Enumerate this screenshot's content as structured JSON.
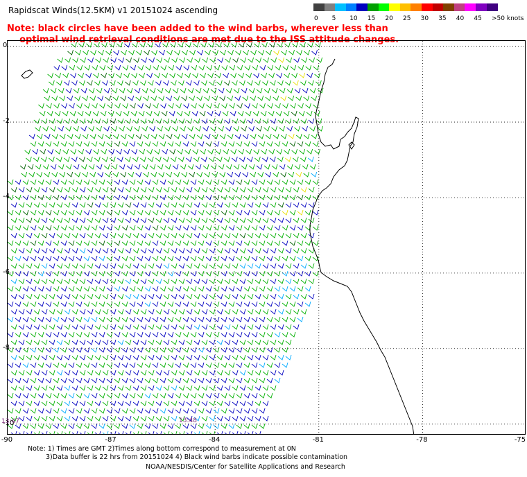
{
  "title": "Rapidscat Winds(12.5KM) v1 20151024 ascending",
  "note": {
    "line1": "Note: black circles have been added to the wind barbs, wherever less than",
    "line2": "optimal wind retrieval conditions are met due to the ISS attitude changes."
  },
  "colorbar": {
    "colors": [
      "#404040",
      "#808080",
      "#00c0ff",
      "#0080ff",
      "#0000c0",
      "#00a000",
      "#00ff00",
      "#ffff00",
      "#ffc000",
      "#ff8000",
      "#ff0000",
      "#c00000",
      "#804000",
      "#c04080",
      "#ff00ff",
      "#8000c0",
      "#400080"
    ],
    "labels": [
      "0",
      "5",
      "10",
      "15",
      "20",
      "25",
      "30",
      "35",
      "40",
      "45",
      ">50 knots"
    ]
  },
  "axes": {
    "x_ticks": [
      "-90",
      "-87",
      "-84",
      "-81",
      "-78",
      "-75"
    ],
    "y_ticks": [
      "0",
      "-2",
      "-4",
      "-6",
      "-8",
      "-10"
    ],
    "x_range": [
      -90,
      -75
    ],
    "y_range": [
      -10.3,
      0.15
    ]
  },
  "time_labels": [
    "13:47",
    "13:48"
  ],
  "footer": {
    "line1": "Note: 1) Times are GMT 2)Times along bottom correspond to measurement at 0N",
    "line2": "3)Data buffer is 22 hrs from 20151024 4) Black wind barbs indicate possible contamination",
    "line3": "NOAA/NESDIS/Center for Satellite Applications and Research"
  },
  "colors": {
    "land": "#000000",
    "grid": "#000000",
    "note": "#ff0000",
    "barb_green": "#00b000",
    "barb_blue": "#0000c0",
    "barb_cyan": "#00aaff",
    "barb_yellow": "#e8e000",
    "barb_darkgreen": "#006000"
  }
}
